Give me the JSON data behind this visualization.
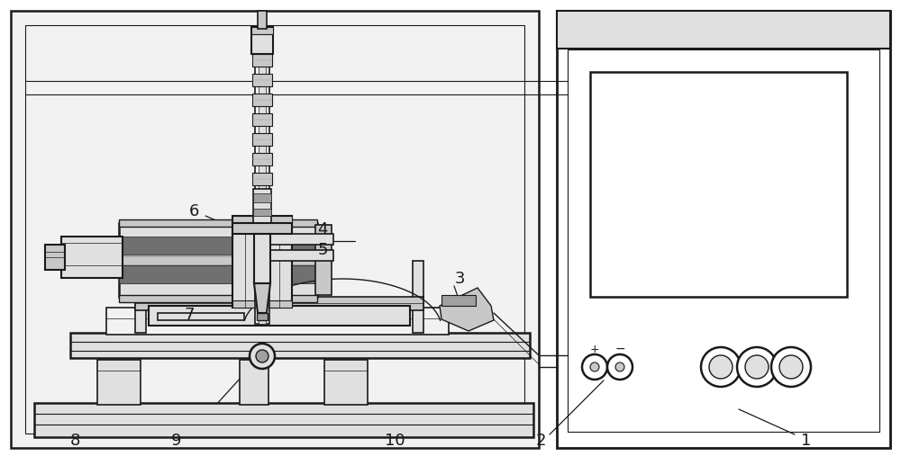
{
  "bg": "#ffffff",
  "lc": "#1a1a1a",
  "g1": "#f2f2f2",
  "g2": "#e0e0e0",
  "g3": "#c8c8c8",
  "g4": "#a0a0a0",
  "g5": "#707070",
  "black": "#1a1a1a"
}
